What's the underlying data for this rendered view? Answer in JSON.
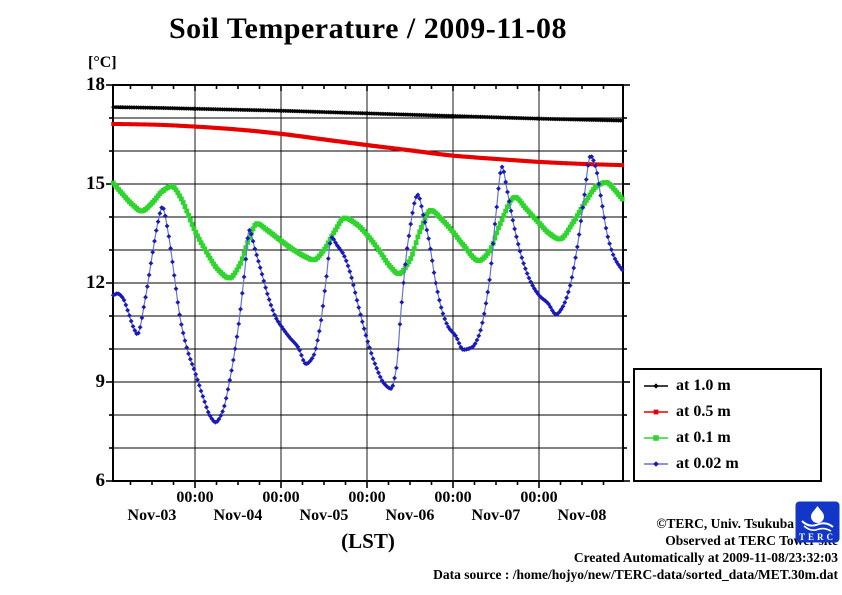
{
  "chart_data": {
    "type": "line",
    "title": "Soil Temperature / 2009-11-08",
    "y_axis": {
      "unit": "[°C]",
      "min": 6,
      "max": 18,
      "major_ticks": [
        18,
        15,
        12,
        9,
        6
      ],
      "minor_step": 1,
      "grid": "every 1 degree"
    },
    "x_axis": {
      "axis_label": "(LST)",
      "midnight_tick_label": "00:00",
      "midnight_ticks_days": [
        1,
        2,
        3,
        4,
        5
      ],
      "day_labels": [
        "Nov-03",
        "Nov-04",
        "Nov-05",
        "Nov-06",
        "Nov-07",
        "Nov-08"
      ],
      "domain_days_from_nov03_0000": [
        0.05,
        5.98
      ],
      "minor_tick_hours": 6
    },
    "legend_position": "right-bottom-outside",
    "marker_interval_minutes": 30,
    "series": [
      {
        "name": "at 1.0 m",
        "color": "#000000",
        "line_color": "#000000",
        "marker": "diamond",
        "marker_size": 2.2,
        "line_width": 2.0,
        "points": [
          [
            0.05,
            17.33
          ],
          [
            0.5,
            17.31
          ],
          [
            1.0,
            17.28
          ],
          [
            1.5,
            17.25
          ],
          [
            2.0,
            17.22
          ],
          [
            2.5,
            17.18
          ],
          [
            3.0,
            17.14
          ],
          [
            3.5,
            17.1
          ],
          [
            4.0,
            17.06
          ],
          [
            4.5,
            17.02
          ],
          [
            5.0,
            16.98
          ],
          [
            5.5,
            16.95
          ],
          [
            5.98,
            16.92
          ]
        ]
      },
      {
        "name": "at 0.5 m",
        "color": "#e60000",
        "line_color": "#e60000",
        "marker": "square",
        "marker_size": 2.0,
        "line_width": 2.0,
        "points": [
          [
            0.05,
            16.82
          ],
          [
            0.5,
            16.8
          ],
          [
            1.0,
            16.74
          ],
          [
            1.5,
            16.65
          ],
          [
            2.0,
            16.52
          ],
          [
            2.5,
            16.35
          ],
          [
            3.0,
            16.18
          ],
          [
            3.5,
            16.02
          ],
          [
            4.0,
            15.86
          ],
          [
            4.5,
            15.76
          ],
          [
            5.0,
            15.67
          ],
          [
            5.5,
            15.61
          ],
          [
            5.98,
            15.57
          ]
        ]
      },
      {
        "name": "at 0.1 m",
        "color": "#2fd42f",
        "line_color": "#2fd42f",
        "marker": "square",
        "marker_size": 2.4,
        "line_width": 2.4,
        "points": [
          [
            0.05,
            15.03
          ],
          [
            0.15,
            14.72
          ],
          [
            0.27,
            14.38
          ],
          [
            0.38,
            14.18
          ],
          [
            0.5,
            14.42
          ],
          [
            0.62,
            14.78
          ],
          [
            0.73,
            14.93
          ],
          [
            0.83,
            14.6
          ],
          [
            1.0,
            13.58
          ],
          [
            1.12,
            13.0
          ],
          [
            1.27,
            12.4
          ],
          [
            1.4,
            12.15
          ],
          [
            1.52,
            12.55
          ],
          [
            1.63,
            13.35
          ],
          [
            1.72,
            13.8
          ],
          [
            1.83,
            13.62
          ],
          [
            2.0,
            13.28
          ],
          [
            2.15,
            13.0
          ],
          [
            2.28,
            12.8
          ],
          [
            2.38,
            12.7
          ],
          [
            2.5,
            13.0
          ],
          [
            2.62,
            13.55
          ],
          [
            2.74,
            13.97
          ],
          [
            2.88,
            13.78
          ],
          [
            3.02,
            13.4
          ],
          [
            3.15,
            12.95
          ],
          [
            3.27,
            12.5
          ],
          [
            3.37,
            12.28
          ],
          [
            3.5,
            12.7
          ],
          [
            3.62,
            13.6
          ],
          [
            3.74,
            14.2
          ],
          [
            3.88,
            13.9
          ],
          [
            4.0,
            13.55
          ],
          [
            4.12,
            13.15
          ],
          [
            4.3,
            12.68
          ],
          [
            4.42,
            12.95
          ],
          [
            4.55,
            13.8
          ],
          [
            4.72,
            14.6
          ],
          [
            4.85,
            14.25
          ],
          [
            5.0,
            13.82
          ],
          [
            5.12,
            13.5
          ],
          [
            5.24,
            13.33
          ],
          [
            5.4,
            13.85
          ],
          [
            5.55,
            14.5
          ],
          [
            5.68,
            14.95
          ],
          [
            5.78,
            15.05
          ],
          [
            5.88,
            14.82
          ],
          [
            5.98,
            14.5
          ]
        ]
      },
      {
        "name": "at 0.02 m",
        "color": "#1a1ab8",
        "line_color": "#6673d6",
        "marker": "diamond",
        "marker_size": 2.4,
        "line_width": 1.2,
        "points": [
          [
            0.05,
            11.63
          ],
          [
            0.1,
            11.68
          ],
          [
            0.16,
            11.55
          ],
          [
            0.22,
            11.15
          ],
          [
            0.29,
            10.62
          ],
          [
            0.33,
            10.45
          ],
          [
            0.42,
            11.5
          ],
          [
            0.5,
            12.8
          ],
          [
            0.57,
            13.85
          ],
          [
            0.62,
            14.3
          ],
          [
            0.69,
            13.5
          ],
          [
            0.76,
            12.2
          ],
          [
            0.83,
            10.9
          ],
          [
            0.92,
            9.9
          ],
          [
            1.0,
            9.3
          ],
          [
            1.1,
            8.5
          ],
          [
            1.17,
            8.0
          ],
          [
            1.24,
            7.78
          ],
          [
            1.32,
            8.1
          ],
          [
            1.4,
            9.0
          ],
          [
            1.5,
            10.6
          ],
          [
            1.58,
            12.4
          ],
          [
            1.63,
            13.6
          ],
          [
            1.7,
            13.0
          ],
          [
            1.76,
            12.45
          ],
          [
            1.85,
            11.6
          ],
          [
            1.94,
            10.95
          ],
          [
            2.02,
            10.63
          ],
          [
            2.1,
            10.35
          ],
          [
            2.2,
            10.05
          ],
          [
            2.29,
            9.55
          ],
          [
            2.37,
            9.75
          ],
          [
            2.45,
            10.6
          ],
          [
            2.52,
            12.0
          ],
          [
            2.59,
            13.38
          ],
          [
            2.65,
            13.15
          ],
          [
            2.72,
            12.9
          ],
          [
            2.8,
            12.35
          ],
          [
            2.9,
            11.3
          ],
          [
            3.0,
            10.3
          ],
          [
            3.1,
            9.5
          ],
          [
            3.2,
            8.95
          ],
          [
            3.28,
            8.8
          ],
          [
            3.34,
            9.4
          ],
          [
            3.4,
            11.3
          ],
          [
            3.48,
            13.3
          ],
          [
            3.59,
            14.67
          ],
          [
            3.66,
            14.0
          ],
          [
            3.72,
            13.3
          ],
          [
            3.8,
            12.0
          ],
          [
            3.88,
            11.1
          ],
          [
            3.95,
            10.65
          ],
          [
            4.03,
            10.4
          ],
          [
            4.12,
            9.98
          ],
          [
            4.22,
            10.05
          ],
          [
            4.3,
            10.4
          ],
          [
            4.42,
            12.0
          ],
          [
            4.5,
            14.1
          ],
          [
            4.57,
            15.52
          ],
          [
            4.63,
            14.8
          ],
          [
            4.72,
            13.6
          ],
          [
            4.82,
            12.6
          ],
          [
            4.92,
            11.95
          ],
          [
            5.01,
            11.6
          ],
          [
            5.1,
            11.4
          ],
          [
            5.2,
            11.05
          ],
          [
            5.27,
            11.25
          ],
          [
            5.35,
            11.8
          ],
          [
            5.44,
            13.0
          ],
          [
            5.52,
            14.5
          ],
          [
            5.6,
            15.85
          ],
          [
            5.66,
            15.5
          ],
          [
            5.72,
            14.6
          ],
          [
            5.8,
            13.4
          ],
          [
            5.88,
            12.75
          ],
          [
            5.98,
            12.35
          ]
        ]
      }
    ]
  },
  "footer": {
    "lines": [
      "©TERC, Univ. Tsukuba",
      "Observed at TERC Tower site",
      "Created Automatically at 2009-11-08/23:32:03",
      "Data source : /home/hojyo/new/TERC-data/sorted_data/MET.30m.dat"
    ],
    "logo_text": "TERC"
  }
}
